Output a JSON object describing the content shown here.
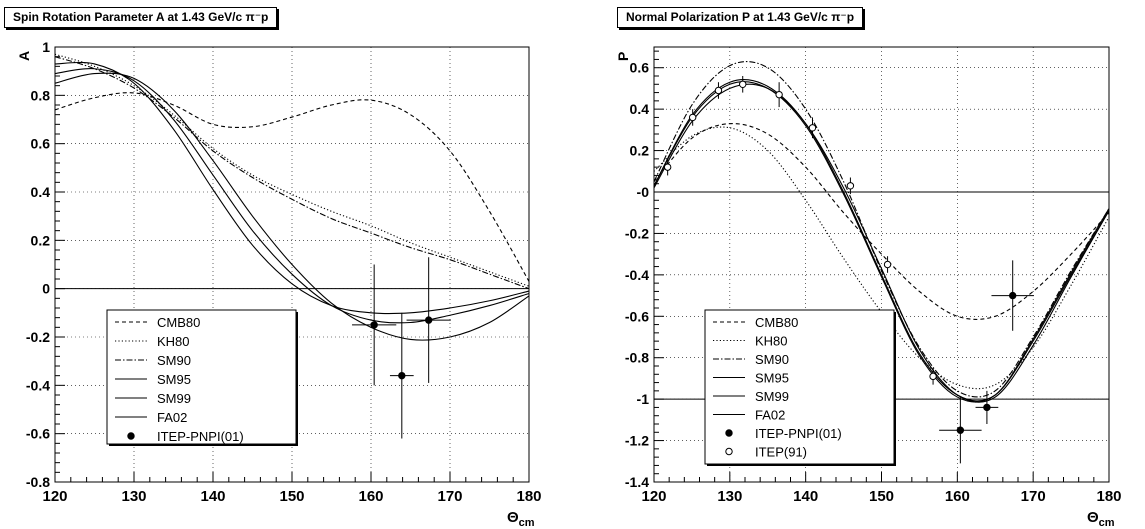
{
  "chart_data": [
    {
      "type": "line",
      "title": "Spin Rotation Parameter A at 1.43 GeV/c π⁻p",
      "xlabel": "Θcm",
      "ylabel": "A",
      "xlim": [
        120,
        180
      ],
      "ylim": [
        -0.8,
        1.0
      ],
      "xticks": [
        "120",
        "130",
        "140",
        "150",
        "160",
        "170",
        "180"
      ],
      "yticks": [
        "-0.8",
        "-0.6",
        "-0.4",
        "-0.2",
        "0",
        "0.2",
        "0.4",
        "0.6",
        "0.8",
        "1"
      ],
      "grid": true,
      "legend_placement": "bottom-left",
      "series": [
        {
          "name": "CMB80",
          "style": "dashed",
          "x": [
            120,
            125,
            130,
            135,
            140,
            145,
            150,
            155,
            160,
            165,
            170,
            175,
            180
          ],
          "y": [
            0.74,
            0.79,
            0.81,
            0.76,
            0.68,
            0.67,
            0.71,
            0.76,
            0.78,
            0.72,
            0.57,
            0.32,
            0.03
          ]
        },
        {
          "name": "KH80",
          "style": "dotted",
          "x": [
            120,
            125,
            130,
            135,
            140,
            145,
            150,
            155,
            160,
            165,
            170,
            175,
            180
          ],
          "y": [
            0.97,
            0.92,
            0.84,
            0.72,
            0.58,
            0.47,
            0.39,
            0.32,
            0.26,
            0.19,
            0.13,
            0.07,
            0.01
          ]
        },
        {
          "name": "SM90",
          "style": "dashdot",
          "x": [
            120,
            125,
            130,
            135,
            140,
            145,
            150,
            155,
            160,
            165,
            170,
            175,
            180
          ],
          "y": [
            0.96,
            0.91,
            0.83,
            0.71,
            0.57,
            0.46,
            0.37,
            0.29,
            0.23,
            0.17,
            0.12,
            0.06,
            0.0
          ]
        },
        {
          "name": "SM95",
          "style": "solid",
          "x": [
            120,
            125,
            130,
            135,
            140,
            145,
            150,
            155,
            160,
            165,
            170,
            175,
            180
          ],
          "y": [
            0.89,
            0.91,
            0.86,
            0.7,
            0.47,
            0.24,
            0.06,
            -0.07,
            -0.13,
            -0.14,
            -0.11,
            -0.07,
            -0.02
          ]
        },
        {
          "name": "SM99",
          "style": "solid",
          "x": [
            120,
            125,
            130,
            135,
            140,
            145,
            150,
            155,
            160,
            165,
            170,
            175,
            180
          ],
          "y": [
            0.85,
            0.89,
            0.87,
            0.74,
            0.53,
            0.3,
            0.1,
            -0.06,
            -0.16,
            -0.21,
            -0.2,
            -0.14,
            -0.03
          ]
        },
        {
          "name": "FA02",
          "style": "solid",
          "x": [
            120,
            125,
            130,
            135,
            140,
            145,
            150,
            155,
            160,
            165,
            170,
            175,
            180
          ],
          "y": [
            0.93,
            0.93,
            0.85,
            0.66,
            0.41,
            0.18,
            0.02,
            -0.07,
            -0.1,
            -0.1,
            -0.08,
            -0.05,
            -0.01
          ]
        }
      ],
      "points": [
        {
          "name": "ITEP-PNPI(01)",
          "marker": "filled-circle",
          "x": [
            160.4,
            163.9,
            167.3
          ],
          "y": [
            -0.15,
            -0.36,
            -0.13
          ],
          "xerr": [
            2.8,
            1.5,
            2.8
          ],
          "yerr": [
            0.25,
            0.26,
            0.26
          ]
        }
      ]
    },
    {
      "type": "line",
      "title": "Normal Polarization P at 1.43 GeV/c π⁻p",
      "xlabel": "Θcm",
      "ylabel": "P",
      "xlim": [
        120,
        180
      ],
      "ylim": [
        -1.4,
        0.7
      ],
      "xticks": [
        "120",
        "130",
        "140",
        "150",
        "160",
        "170",
        "180"
      ],
      "yticks": [
        "-1.4",
        "-1.2",
        "-1",
        "-0.8",
        "-0.6",
        "-0.4",
        "-0.2",
        "-0",
        "0.2",
        "0.4",
        "0.6"
      ],
      "grid": true,
      "legend_placement": "bottom-left",
      "series": [
        {
          "name": "CMB80",
          "style": "dashed",
          "x": [
            120,
            125,
            130,
            135,
            140,
            145,
            150,
            155,
            160,
            165,
            170,
            175,
            180
          ],
          "y": [
            0.05,
            0.26,
            0.33,
            0.28,
            0.12,
            -0.1,
            -0.3,
            -0.48,
            -0.6,
            -0.6,
            -0.48,
            -0.3,
            -0.1
          ]
        },
        {
          "name": "KH80",
          "style": "dotted",
          "x": [
            120,
            125,
            130,
            135,
            140,
            145,
            150,
            155,
            160,
            165,
            170,
            175,
            180
          ],
          "y": [
            0.1,
            0.27,
            0.31,
            0.2,
            -0.04,
            -0.32,
            -0.58,
            -0.8,
            -0.93,
            -0.93,
            -0.75,
            -0.45,
            -0.12
          ]
        },
        {
          "name": "SM90",
          "style": "dashdot",
          "x": [
            120,
            125,
            130,
            135,
            140,
            145,
            150,
            155,
            160,
            165,
            170,
            175,
            180
          ],
          "y": [
            0.05,
            0.42,
            0.61,
            0.6,
            0.4,
            0.05,
            -0.38,
            -0.75,
            -0.96,
            -0.96,
            -0.7,
            -0.38,
            -0.08
          ]
        },
        {
          "name": "SM95",
          "style": "solid",
          "x": [
            120,
            125,
            130,
            135,
            140,
            145,
            150,
            155,
            160,
            165,
            170,
            175,
            180
          ],
          "y": [
            0.03,
            0.37,
            0.53,
            0.51,
            0.33,
            0.0,
            -0.4,
            -0.78,
            -0.98,
            -0.98,
            -0.72,
            -0.4,
            -0.09
          ]
        },
        {
          "name": "SM99",
          "style": "solid",
          "x": [
            120,
            125,
            130,
            135,
            140,
            145,
            150,
            155,
            160,
            165,
            170,
            175,
            180
          ],
          "y": [
            0.02,
            0.34,
            0.5,
            0.5,
            0.33,
            0.02,
            -0.37,
            -0.76,
            -0.98,
            -0.99,
            -0.74,
            -0.41,
            -0.09
          ]
        },
        {
          "name": "FA02",
          "style": "solid",
          "x": [
            120,
            125,
            130,
            135,
            140,
            145,
            150,
            155,
            160,
            165,
            170,
            175,
            180
          ],
          "y": [
            0.03,
            0.36,
            0.52,
            0.5,
            0.32,
            -0.01,
            -0.41,
            -0.79,
            -0.99,
            -0.98,
            -0.71,
            -0.39,
            -0.08
          ]
        }
      ],
      "points": [
        {
          "name": "ITEP-PNPI(01)",
          "marker": "filled-circle",
          "x": [
            160.4,
            163.9,
            167.3
          ],
          "y": [
            -1.15,
            -1.04,
            -0.5
          ],
          "xerr": [
            2.8,
            1.5,
            2.8
          ],
          "yerr": [
            0.16,
            0.08,
            0.17
          ]
        },
        {
          "name": "ITEP(91)",
          "marker": "open-circle",
          "x": [
            121.8,
            125.1,
            128.5,
            131.7,
            136.5,
            140.9,
            145.9,
            150.8,
            156.8
          ],
          "y": [
            0.12,
            0.36,
            0.49,
            0.52,
            0.47,
            0.31,
            0.03,
            -0.35,
            -0.89
          ],
          "xerr": [
            0,
            0,
            0,
            0,
            0,
            0,
            0,
            0,
            0
          ],
          "yerr": [
            0.04,
            0.04,
            0.04,
            0.04,
            0.06,
            0.05,
            0.04,
            0.04,
            0.04
          ]
        }
      ]
    }
  ]
}
